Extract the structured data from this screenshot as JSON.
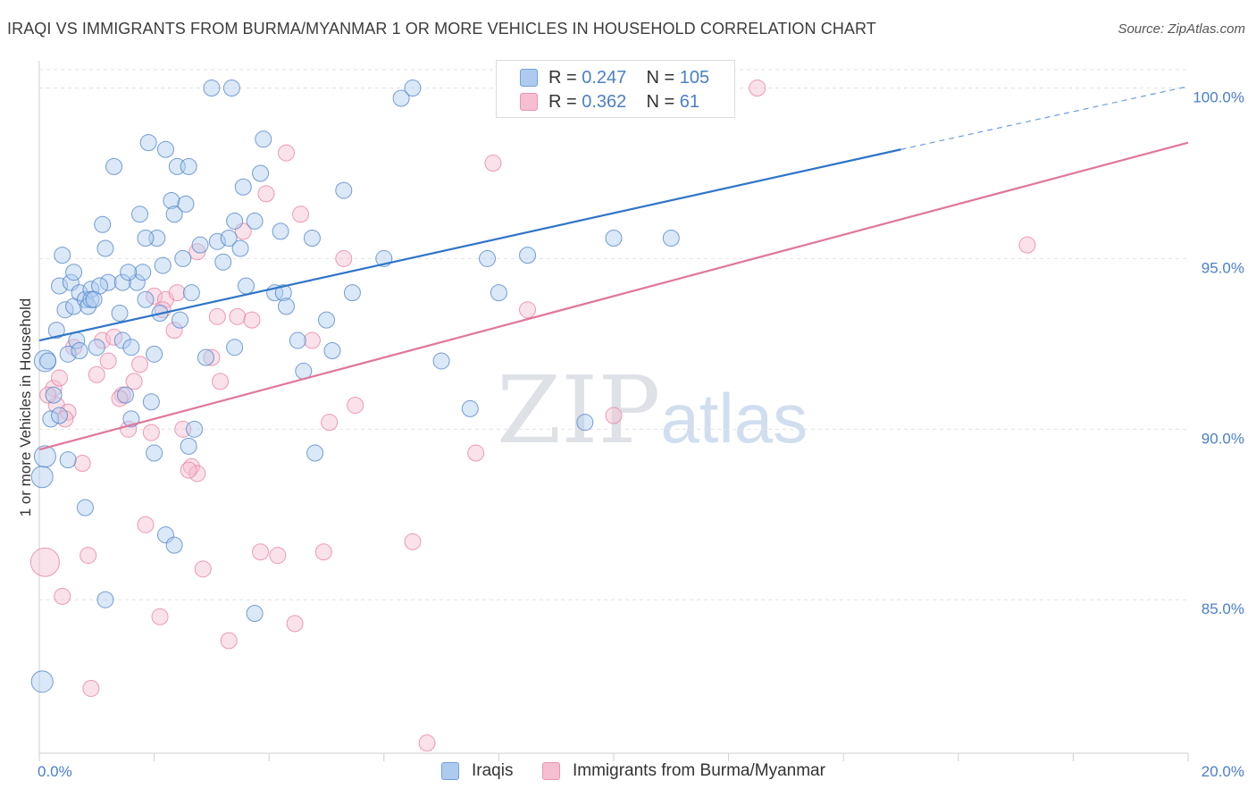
{
  "title": "IRAQI VS IMMIGRANTS FROM BURMA/MYANMAR 1 OR MORE VEHICLES IN HOUSEHOLD CORRELATION CHART",
  "source": "Source: ZipAtlas.com",
  "watermark": {
    "zip": "ZIP",
    "atlas": "atlas"
  },
  "colors": {
    "blue": "#4a7fc8",
    "blue_fill": "#aecbef",
    "blue_line": "#2f74c8",
    "pink": "#e87aa0",
    "pink_fill": "#f5bfd1",
    "pink_line": "#e0769b"
  },
  "legend": {
    "rows": [
      {
        "r_label": "R = ",
        "r_value": "0.247",
        "n_label": "N = ",
        "n_value": "105"
      },
      {
        "r_label": "R = ",
        "r_value": "0.362",
        "n_label": "N = ",
        "n_value": "61"
      }
    ]
  },
  "bottom_legend": {
    "series1": "Iraqis",
    "series2": "Immigrants from Burma/Myanmar"
  },
  "chart_data": {
    "type": "scatter",
    "title": "IRAQI VS IMMIGRANTS FROM BURMA/MYANMAR 1 OR MORE VEHICLES IN HOUSEHOLD CORRELATION CHART",
    "xlabel": "",
    "ylabel": "1 or more Vehicles in Household",
    "xlim": [
      0,
      20
    ],
    "ylim": [
      80.5,
      100.8
    ],
    "x_tick_labels": [
      "0.0%",
      "20.0%"
    ],
    "y_ticks": [
      85,
      90,
      95,
      100
    ],
    "y_tick_labels": [
      "85.0%",
      "90.0%",
      "95.0%",
      "100.0%"
    ],
    "grid": true,
    "legend_position": "top-center",
    "series": [
      {
        "name": "Iraqis",
        "R": 0.247,
        "N": 105,
        "trend": {
          "x0": 0,
          "y0": 92.6,
          "x1": 15,
          "y1": 98.2,
          "dashed_to_x": 20,
          "dashed_to_y": 100.05
        },
        "points": [
          [
            0.1,
            92.0
          ],
          [
            0.25,
            91.0
          ],
          [
            0.3,
            92.9
          ],
          [
            0.35,
            94.2
          ],
          [
            0.4,
            95.1
          ],
          [
            0.45,
            93.5
          ],
          [
            0.5,
            92.2
          ],
          [
            0.55,
            94.3
          ],
          [
            0.6,
            93.6
          ],
          [
            0.65,
            92.6
          ],
          [
            0.7,
            94.0
          ],
          [
            0.8,
            93.8
          ],
          [
            0.85,
            93.6
          ],
          [
            0.9,
            94.1
          ],
          [
            1.1,
            96.0
          ],
          [
            1.15,
            95.3
          ],
          [
            1.3,
            97.7
          ],
          [
            1.4,
            93.4
          ],
          [
            1.45,
            92.6
          ],
          [
            1.6,
            92.4
          ],
          [
            1.7,
            94.3
          ],
          [
            1.75,
            96.3
          ],
          [
            1.8,
            94.6
          ],
          [
            1.85,
            93.8
          ],
          [
            1.9,
            98.4
          ],
          [
            2.0,
            92.2
          ],
          [
            2.05,
            95.6
          ],
          [
            2.15,
            94.8
          ],
          [
            2.2,
            98.2
          ],
          [
            2.3,
            96.7
          ],
          [
            2.35,
            96.3
          ],
          [
            2.4,
            97.7
          ],
          [
            2.5,
            95.0
          ],
          [
            2.6,
            97.7
          ],
          [
            2.8,
            95.4
          ],
          [
            3.0,
            100.0
          ],
          [
            3.1,
            95.5
          ],
          [
            3.2,
            94.9
          ],
          [
            3.3,
            95.6
          ],
          [
            3.4,
            96.1
          ],
          [
            3.5,
            95.3
          ],
          [
            3.6,
            94.2
          ],
          [
            3.75,
            96.1
          ],
          [
            3.85,
            97.5
          ],
          [
            3.9,
            98.5
          ],
          [
            4.1,
            94.0
          ],
          [
            4.2,
            95.8
          ],
          [
            4.25,
            94.0
          ],
          [
            4.3,
            93.6
          ],
          [
            4.5,
            92.6
          ],
          [
            4.6,
            91.7
          ],
          [
            4.75,
            95.6
          ],
          [
            4.8,
            89.3
          ],
          [
            5.0,
            93.2
          ],
          [
            5.1,
            92.3
          ],
          [
            5.3,
            97.0
          ],
          [
            5.45,
            94.0
          ],
          [
            6.0,
            95.0
          ],
          [
            6.3,
            99.7
          ],
          [
            6.5,
            100.0
          ],
          [
            7.0,
            92.0
          ],
          [
            7.5,
            90.6
          ],
          [
            7.8,
            95.0
          ],
          [
            8.0,
            94.0
          ],
          [
            8.5,
            95.1
          ],
          [
            9.5,
            90.2
          ],
          [
            10.0,
            95.6
          ],
          [
            11.0,
            95.6
          ],
          [
            0.05,
            88.6
          ],
          [
            0.1,
            89.2
          ],
          [
            0.05,
            82.6
          ],
          [
            0.15,
            92.0
          ],
          [
            0.2,
            90.3
          ],
          [
            0.35,
            90.4
          ],
          [
            0.5,
            89.1
          ],
          [
            0.8,
            87.7
          ],
          [
            1.15,
            85.0
          ],
          [
            1.5,
            91.0
          ],
          [
            1.6,
            90.3
          ],
          [
            1.95,
            90.8
          ],
          [
            2.0,
            89.3
          ],
          [
            2.2,
            86.9
          ],
          [
            2.35,
            86.6
          ],
          [
            2.6,
            89.5
          ],
          [
            2.7,
            90.0
          ],
          [
            2.9,
            92.1
          ],
          [
            3.4,
            92.4
          ],
          [
            3.75,
            84.6
          ],
          [
            1.2,
            94.3
          ],
          [
            1.45,
            94.3
          ],
          [
            0.6,
            94.6
          ],
          [
            1.55,
            94.6
          ],
          [
            2.45,
            93.2
          ],
          [
            0.9,
            93.8
          ],
          [
            1.0,
            92.4
          ],
          [
            2.55,
            96.6
          ],
          [
            2.65,
            94.0
          ],
          [
            3.35,
            100.0
          ],
          [
            3.55,
            97.1
          ],
          [
            1.85,
            95.6
          ],
          [
            1.05,
            94.2
          ],
          [
            2.1,
            93.4
          ],
          [
            0.7,
            92.3
          ],
          [
            0.95,
            93.8
          ]
        ]
      },
      {
        "name": "Immigrants from Burma/Myanmar",
        "R": 0.362,
        "N": 61,
        "trend": {
          "x0": 0,
          "y0": 89.4,
          "x1": 20,
          "y1": 98.4
        },
        "points": [
          [
            0.1,
            86.1
          ],
          [
            0.25,
            91.2
          ],
          [
            0.3,
            90.7
          ],
          [
            0.35,
            91.5
          ],
          [
            0.4,
            85.1
          ],
          [
            0.5,
            90.5
          ],
          [
            0.6,
            92.4
          ],
          [
            0.75,
            89.0
          ],
          [
            0.85,
            86.3
          ],
          [
            0.9,
            82.4
          ],
          [
            1.0,
            91.6
          ],
          [
            1.1,
            92.6
          ],
          [
            1.2,
            92.0
          ],
          [
            1.3,
            92.7
          ],
          [
            1.45,
            91.0
          ],
          [
            1.55,
            90.0
          ],
          [
            1.65,
            91.4
          ],
          [
            1.75,
            91.9
          ],
          [
            1.85,
            87.2
          ],
          [
            2.0,
            93.9
          ],
          [
            2.1,
            84.5
          ],
          [
            2.2,
            93.8
          ],
          [
            2.35,
            92.9
          ],
          [
            2.5,
            90.0
          ],
          [
            2.65,
            88.9
          ],
          [
            2.75,
            88.7
          ],
          [
            2.85,
            85.9
          ],
          [
            3.0,
            92.1
          ],
          [
            3.15,
            91.4
          ],
          [
            3.3,
            83.8
          ],
          [
            3.45,
            93.3
          ],
          [
            3.55,
            95.8
          ],
          [
            3.7,
            93.2
          ],
          [
            3.85,
            86.4
          ],
          [
            3.95,
            96.9
          ],
          [
            4.15,
            86.3
          ],
          [
            4.3,
            98.1
          ],
          [
            4.45,
            84.3
          ],
          [
            4.55,
            96.3
          ],
          [
            4.75,
            92.6
          ],
          [
            4.95,
            86.4
          ],
          [
            5.05,
            90.2
          ],
          [
            5.3,
            95.0
          ],
          [
            5.5,
            90.7
          ],
          [
            6.5,
            86.7
          ],
          [
            6.75,
            80.8
          ],
          [
            7.6,
            89.3
          ],
          [
            7.9,
            97.8
          ],
          [
            8.5,
            93.5
          ],
          [
            10.0,
            90.4
          ],
          [
            12.5,
            100.0
          ],
          [
            17.2,
            95.4
          ],
          [
            0.15,
            91.0
          ],
          [
            0.45,
            90.3
          ],
          [
            1.4,
            90.9
          ],
          [
            2.4,
            94.0
          ],
          [
            2.75,
            95.2
          ],
          [
            3.1,
            93.3
          ],
          [
            2.6,
            88.8
          ],
          [
            1.95,
            89.9
          ],
          [
            2.15,
            93.5
          ]
        ]
      }
    ]
  }
}
